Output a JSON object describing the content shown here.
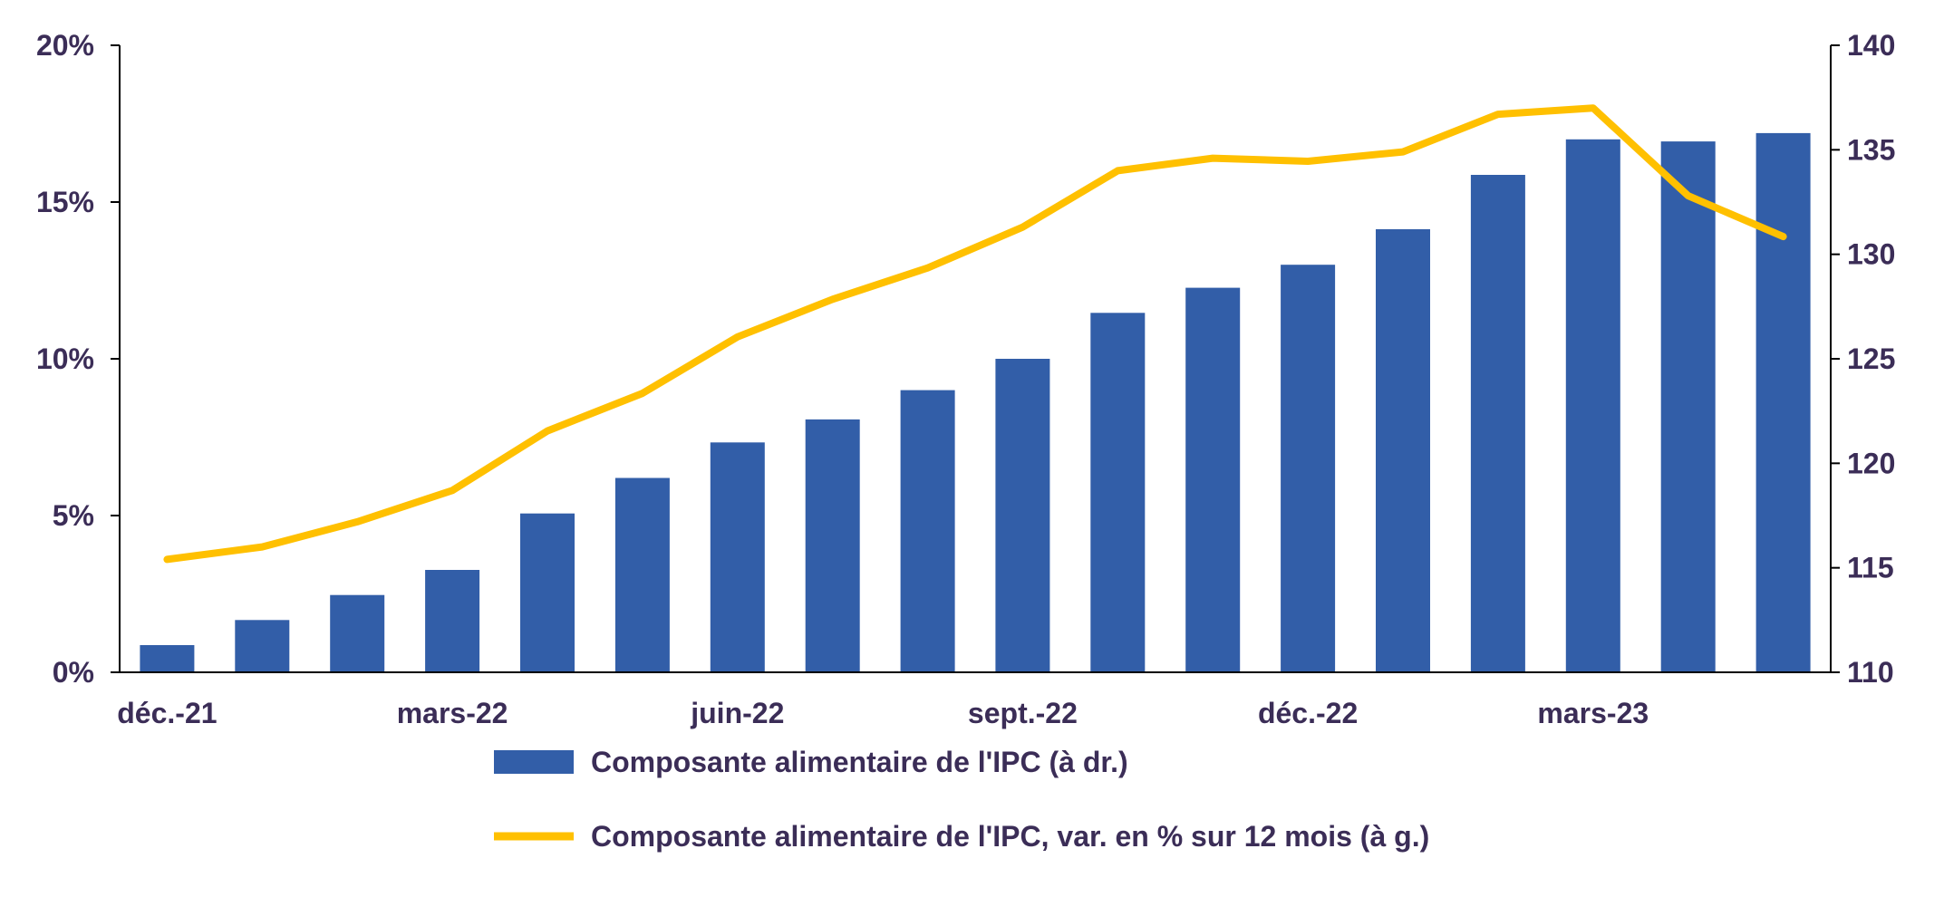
{
  "chart_data": {
    "type": "bar",
    "categories": [
      "déc.-21",
      "janv.-22",
      "févr.-22",
      "mars-22",
      "avr.-22",
      "mai-22",
      "juin-22",
      "juil.-22",
      "août-22",
      "sept.-22",
      "oct.-22",
      "nov.-22",
      "déc.-22",
      "janv.-23",
      "févr.-23",
      "mars-23",
      "avr.-23",
      "mai-23"
    ],
    "x_tick_labels": [
      "déc.-21",
      "mars-22",
      "juin-22",
      "sept.-22",
      "déc.-22",
      "mars-23"
    ],
    "x_tick_indices": [
      0,
      3,
      6,
      9,
      12,
      15
    ],
    "series": [
      {
        "name": "Composante alimentaire de l'IPC (à dr.)",
        "type": "bar",
        "axis": "right",
        "color": "#325ea8",
        "values": [
          111.3,
          112.5,
          113.7,
          114.9,
          117.6,
          119.3,
          121.0,
          122.1,
          123.5,
          125.0,
          127.2,
          128.4,
          129.5,
          131.2,
          133.8,
          135.5,
          135.4,
          135.8
        ]
      },
      {
        "name": "Composante alimentaire de l'IPC, var. en % sur 12 mois (à g.)",
        "type": "line",
        "axis": "left",
        "color": "#ffc000",
        "values": [
          3.6,
          4.0,
          4.8,
          5.8,
          7.7,
          8.9,
          10.7,
          11.9,
          12.9,
          14.2,
          16.0,
          16.4,
          16.3,
          16.6,
          17.8,
          18.0,
          15.2,
          13.9
        ]
      }
    ],
    "y_left": {
      "ticks": [
        "0%",
        "5%",
        "10%",
        "15%",
        "20%"
      ],
      "values": [
        0,
        5,
        10,
        15,
        20
      ],
      "range": [
        0,
        20
      ]
    },
    "y_right": {
      "ticks": [
        "110",
        "115",
        "120",
        "125",
        "130",
        "135",
        "140"
      ],
      "values": [
        110,
        115,
        120,
        125,
        130,
        135,
        140
      ],
      "range": [
        110,
        140
      ]
    },
    "grid": false,
    "legend_position": "bottom"
  }
}
